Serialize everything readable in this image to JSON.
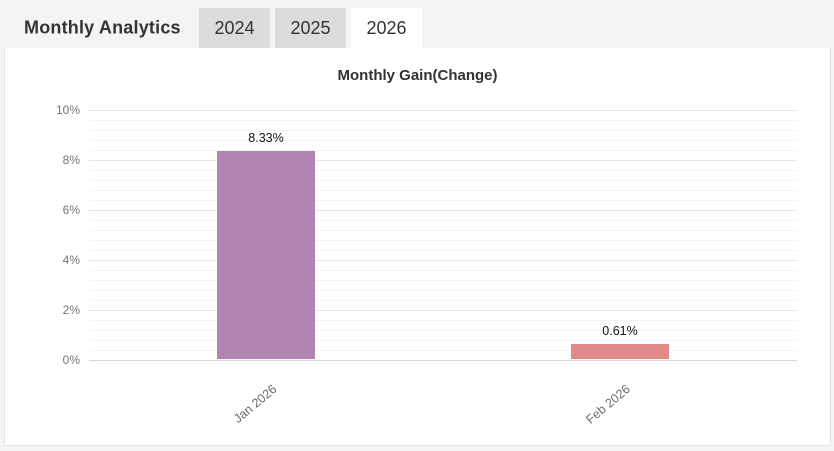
{
  "header": {
    "title": "Monthly Analytics",
    "tabs": [
      {
        "label": "2024",
        "active": false
      },
      {
        "label": "2025",
        "active": false
      },
      {
        "label": "2026",
        "active": true
      }
    ]
  },
  "chart_data": {
    "type": "bar",
    "title": "Monthly Gain(Change)",
    "categories": [
      "Jan 2026",
      "Feb 2026"
    ],
    "values": [
      8.33,
      0.61
    ],
    "value_labels": [
      "8.33%",
      "0.61%"
    ],
    "bar_colors": [
      "#b284b2",
      "#e18a8a"
    ],
    "xlabel": "",
    "ylabel": "",
    "ylim": [
      0,
      10
    ],
    "y_ticks": [
      {
        "value": 0,
        "label": "0%"
      },
      {
        "value": 2,
        "label": "2%"
      },
      {
        "value": 4,
        "label": "4%"
      },
      {
        "value": 6,
        "label": "6%"
      },
      {
        "value": 8,
        "label": "8%"
      },
      {
        "value": 10,
        "label": "10%"
      }
    ],
    "grid": true,
    "legend": false
  },
  "colors": {
    "header_bg": "#f4f4f4",
    "tab_inactive_bg": "#dcdcdc",
    "tab_active_bg": "#ffffff",
    "panel_bg": "#ffffff",
    "bar_jan_2026": "#b284b2",
    "bar_feb_2026": "#e18a8a",
    "grid_major": "#e6e6e6",
    "grid_minor": "#f4f4f4",
    "axis_text": "#757575"
  }
}
